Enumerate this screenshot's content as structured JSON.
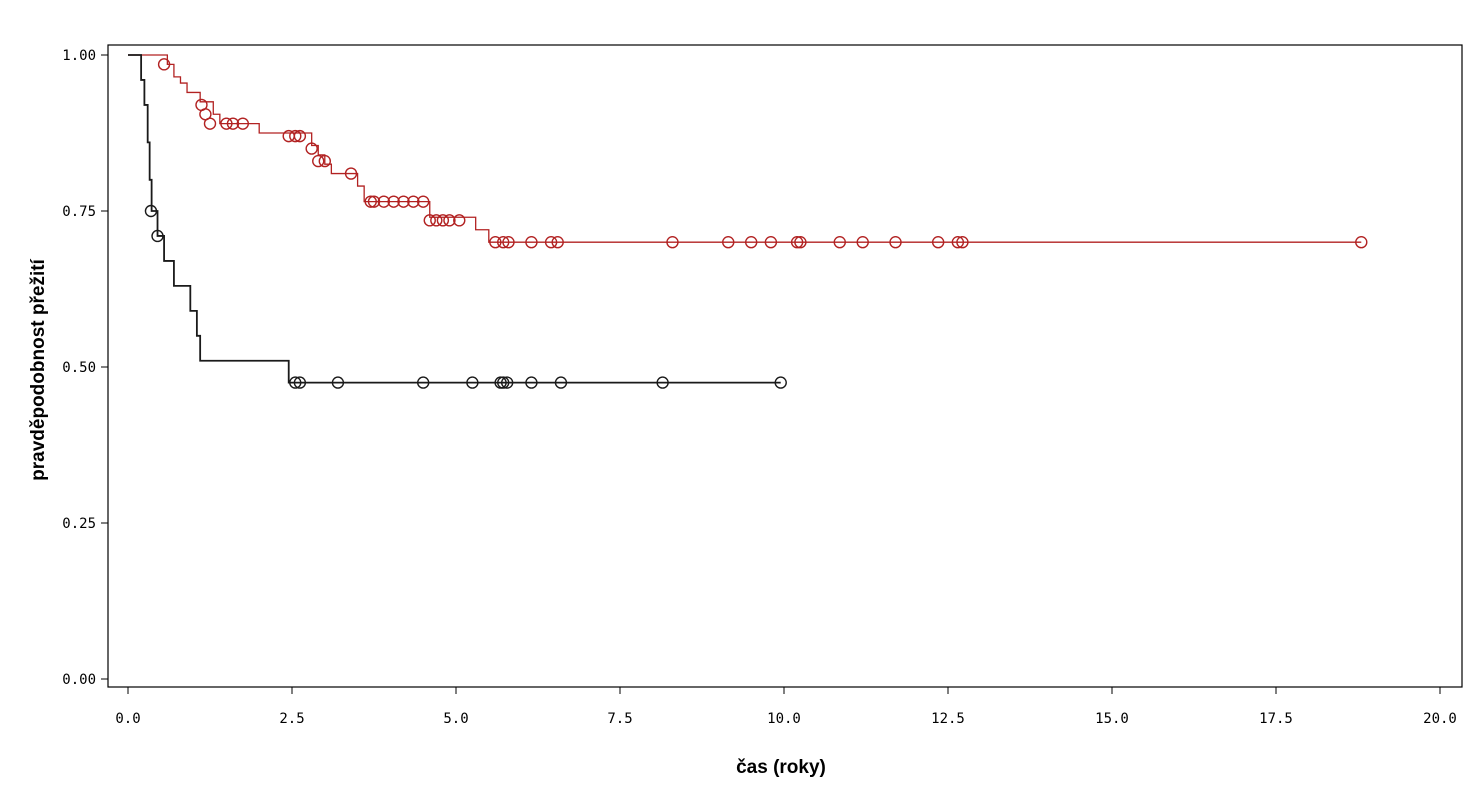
{
  "chart_data": {
    "type": "line",
    "title": "",
    "xlabel": "čas (roky)",
    "ylabel": "pravděpodobnost přežití",
    "xlim": [
      0,
      20
    ],
    "ylim": [
      0,
      1
    ],
    "xticks": [
      "0.0",
      "2.5",
      "5.0",
      "7.5",
      "10.0",
      "12.5",
      "15.0",
      "17.5",
      "20.0"
    ],
    "yticks": [
      "0.00",
      "0.25",
      "0.50",
      "0.75",
      "1.00"
    ],
    "grid": false,
    "series": [
      {
        "color": "#b22222",
        "steps": [
          [
            0,
            1.0
          ],
          [
            0.6,
            0.985
          ],
          [
            0.7,
            0.965
          ],
          [
            0.8,
            0.955
          ],
          [
            0.9,
            0.94
          ],
          [
            1.1,
            0.925
          ],
          [
            1.3,
            0.905
          ],
          [
            1.4,
            0.89
          ],
          [
            2.0,
            0.875
          ],
          [
            2.8,
            0.855
          ],
          [
            2.9,
            0.84
          ],
          [
            3.0,
            0.825
          ],
          [
            3.1,
            0.81
          ],
          [
            3.5,
            0.79
          ],
          [
            3.6,
            0.765
          ],
          [
            4.6,
            0.74
          ],
          [
            5.3,
            0.72
          ],
          [
            5.5,
            0.7
          ],
          [
            18.8,
            0.7
          ]
        ],
        "censored": [
          [
            0.55,
            0.985
          ],
          [
            1.12,
            0.92
          ],
          [
            1.18,
            0.905
          ],
          [
            1.25,
            0.89
          ],
          [
            1.5,
            0.89
          ],
          [
            1.6,
            0.89
          ],
          [
            1.75,
            0.89
          ],
          [
            2.45,
            0.87
          ],
          [
            2.55,
            0.87
          ],
          [
            2.62,
            0.87
          ],
          [
            2.8,
            0.85
          ],
          [
            2.9,
            0.83
          ],
          [
            3.0,
            0.83
          ],
          [
            3.4,
            0.81
          ],
          [
            3.7,
            0.765
          ],
          [
            3.75,
            0.765
          ],
          [
            3.9,
            0.765
          ],
          [
            4.05,
            0.765
          ],
          [
            4.2,
            0.765
          ],
          [
            4.35,
            0.765
          ],
          [
            4.5,
            0.765
          ],
          [
            4.6,
            0.735
          ],
          [
            4.7,
            0.735
          ],
          [
            4.8,
            0.735
          ],
          [
            4.9,
            0.735
          ],
          [
            5.05,
            0.735
          ],
          [
            5.6,
            0.7
          ],
          [
            5.72,
            0.7
          ],
          [
            5.8,
            0.7
          ],
          [
            6.15,
            0.7
          ],
          [
            6.45,
            0.7
          ],
          [
            6.55,
            0.7
          ],
          [
            8.3,
            0.7
          ],
          [
            9.15,
            0.7
          ],
          [
            9.5,
            0.7
          ],
          [
            9.8,
            0.7
          ],
          [
            10.2,
            0.7
          ],
          [
            10.25,
            0.7
          ],
          [
            10.85,
            0.7
          ],
          [
            11.2,
            0.7
          ],
          [
            11.7,
            0.7
          ],
          [
            12.35,
            0.7
          ],
          [
            12.65,
            0.7
          ],
          [
            12.72,
            0.7
          ],
          [
            18.8,
            0.7
          ]
        ]
      },
      {
        "color": "#1a1a1a",
        "steps": [
          [
            0,
            1.0
          ],
          [
            0.2,
            0.96
          ],
          [
            0.25,
            0.92
          ],
          [
            0.3,
            0.86
          ],
          [
            0.33,
            0.8
          ],
          [
            0.36,
            0.75
          ],
          [
            0.45,
            0.71
          ],
          [
            0.55,
            0.67
          ],
          [
            0.7,
            0.63
          ],
          [
            0.95,
            0.59
          ],
          [
            1.05,
            0.55
          ],
          [
            1.1,
            0.51
          ],
          [
            2.45,
            0.475
          ],
          [
            9.95,
            0.475
          ]
        ],
        "censored": [
          [
            0.35,
            0.75
          ],
          [
            0.45,
            0.71
          ],
          [
            2.55,
            0.475
          ],
          [
            2.62,
            0.475
          ],
          [
            3.2,
            0.475
          ],
          [
            4.5,
            0.475
          ],
          [
            5.25,
            0.475
          ],
          [
            5.68,
            0.475
          ],
          [
            5.72,
            0.475
          ],
          [
            5.78,
            0.475
          ],
          [
            6.15,
            0.475
          ],
          [
            6.6,
            0.475
          ],
          [
            8.15,
            0.475
          ],
          [
            9.95,
            0.475
          ]
        ]
      }
    ]
  }
}
